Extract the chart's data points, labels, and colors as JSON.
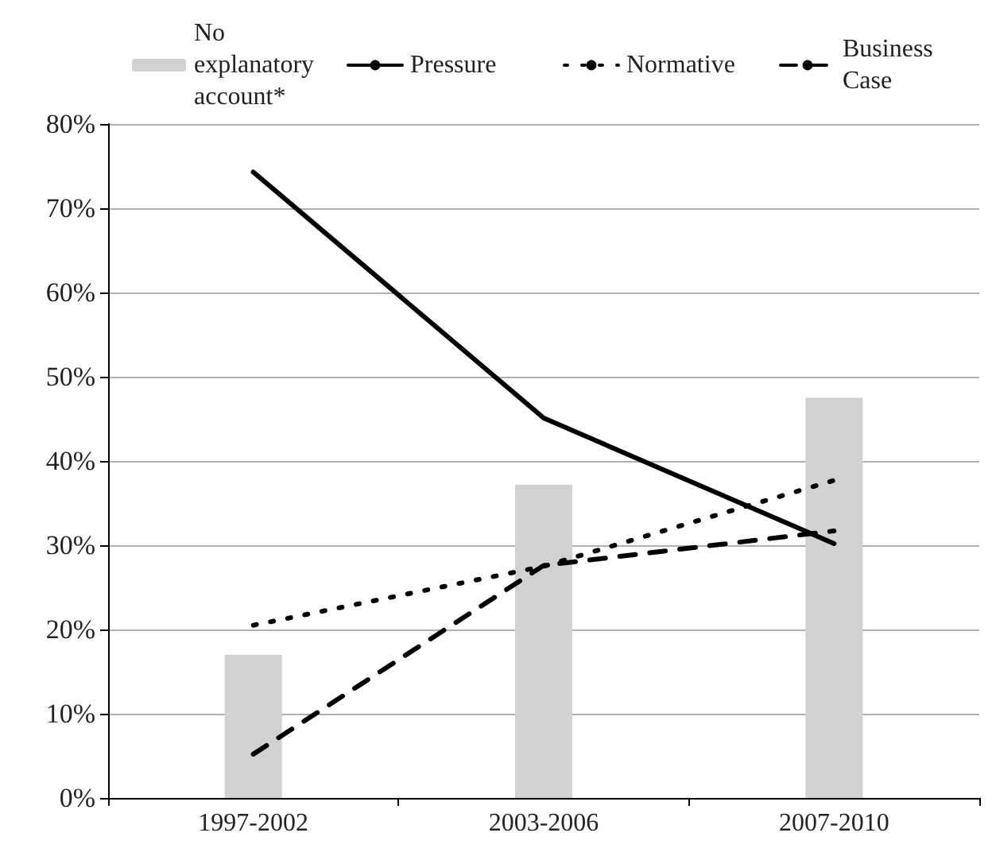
{
  "chart_data": {
    "type": "bar",
    "categories": [
      "1997-2002",
      "2003-2006",
      "2007-2010"
    ],
    "series": [
      {
        "name": "No explanatory account*",
        "color": "#d0d1d0",
        "values": [
          17.0,
          37.2,
          47.5
        ]
      },
      {
        "name": "Pressure",
        "type": "line",
        "color": "#000000",
        "line_style": "solid",
        "values": [
          74.3,
          45.1,
          30.2
        ]
      },
      {
        "name": "Normative",
        "type": "line",
        "color": "#000000",
        "line_style": "dotted",
        "values": [
          20.5,
          27.5,
          37.7
        ]
      },
      {
        "name": "Business Case",
        "type": "line",
        "color": "#000000",
        "line_style": "dashed",
        "values": [
          5.2,
          27.6,
          31.7
        ]
      }
    ],
    "ylim": [
      0,
      80
    ],
    "yticks": [
      {
        "value": 0,
        "label": "0%"
      },
      {
        "value": 10,
        "label": "10%"
      },
      {
        "value": 20,
        "label": "20%"
      },
      {
        "value": 30,
        "label": "30%"
      },
      {
        "value": 40,
        "label": "40%"
      },
      {
        "value": 50,
        "label": "50%"
      },
      {
        "value": 60,
        "label": "60%"
      },
      {
        "value": 70,
        "label": "70%"
      },
      {
        "value": 80,
        "label": "80%"
      }
    ],
    "grid": "y",
    "legend": "top",
    "marker": "none"
  }
}
